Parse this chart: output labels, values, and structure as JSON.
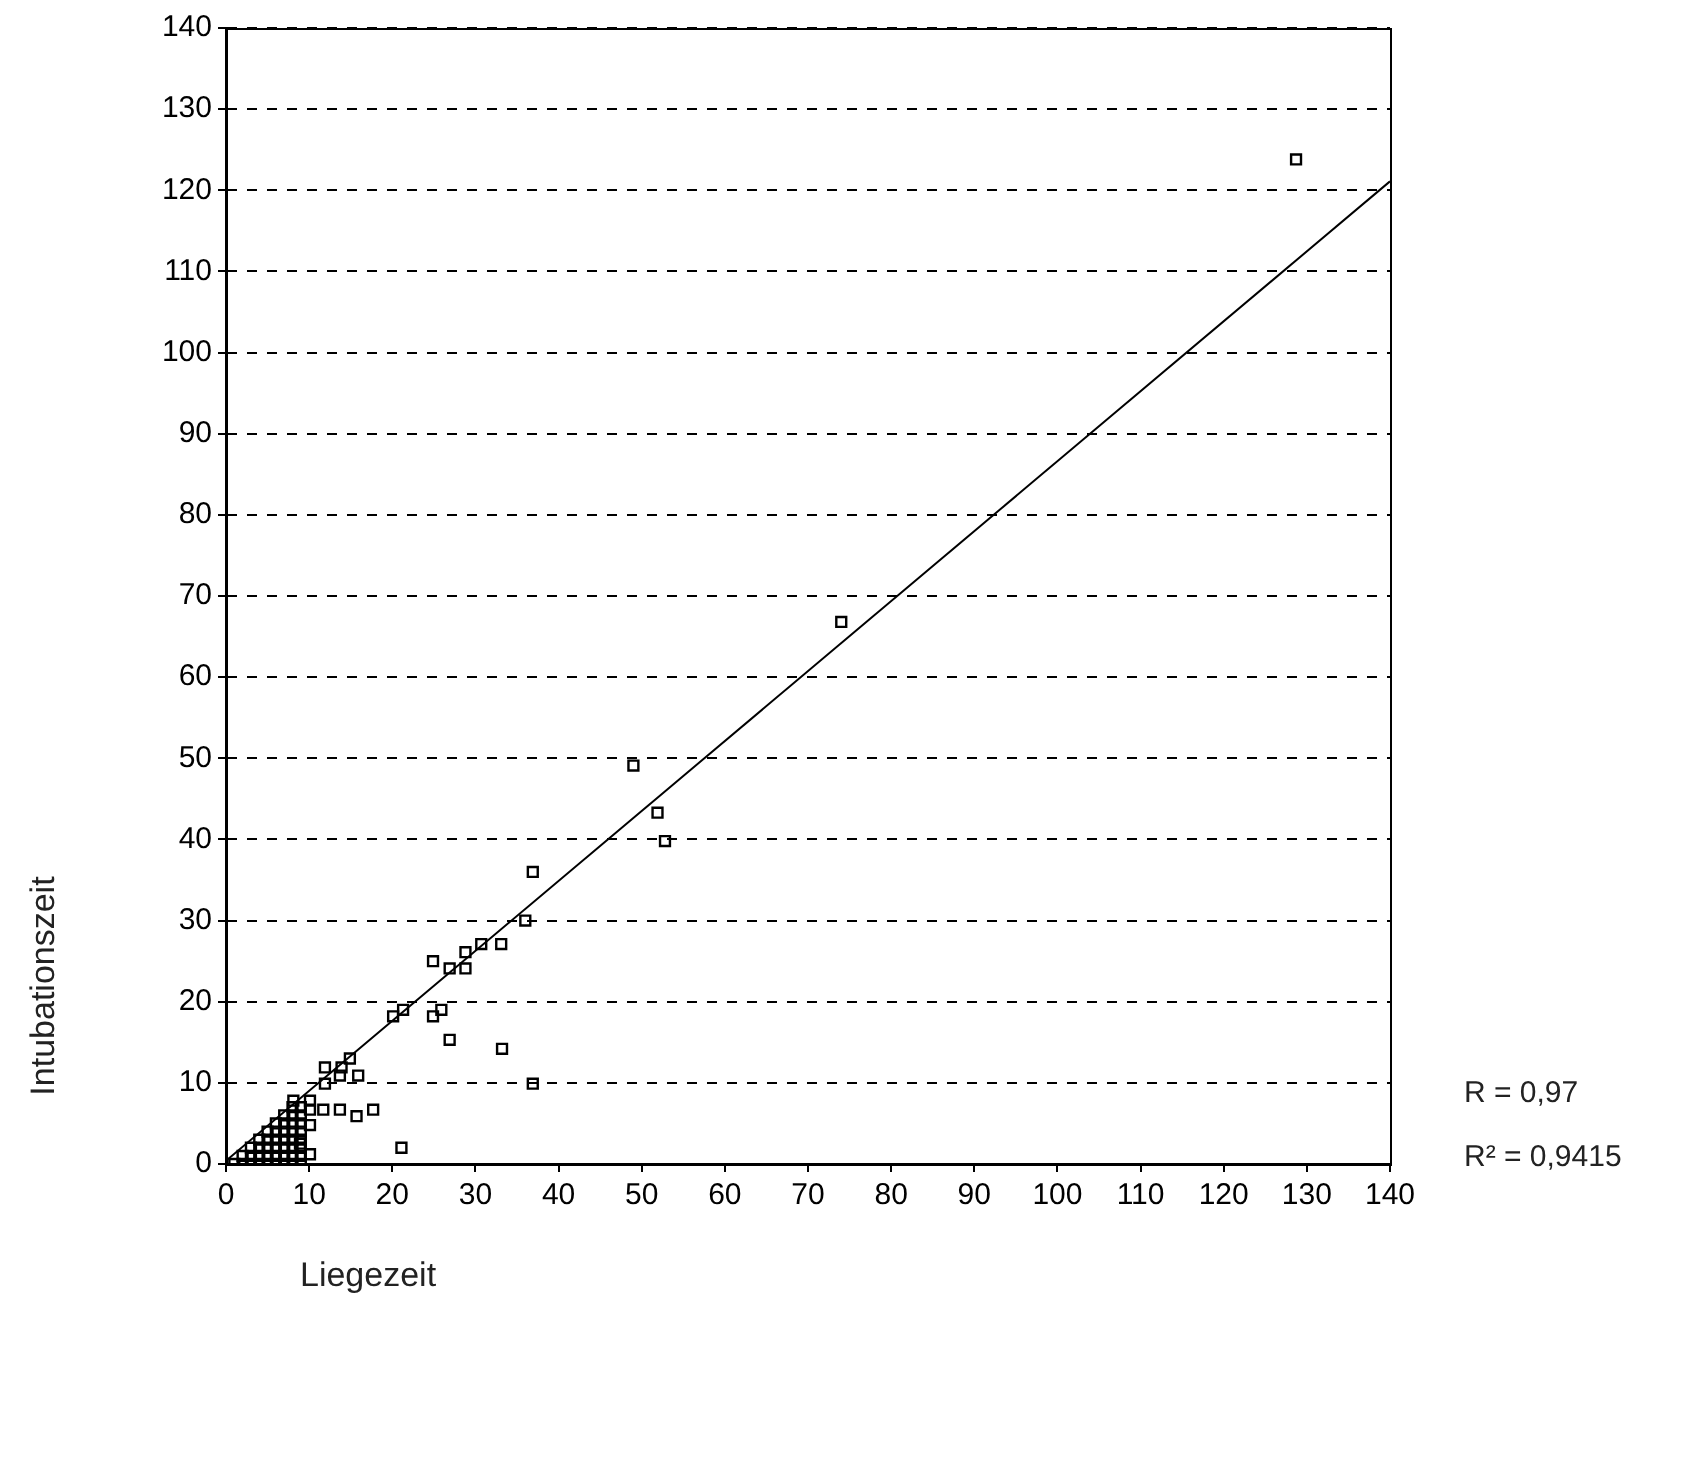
{
  "chart_data": {
    "type": "scatter",
    "xlabel": "Liegezeit",
    "ylabel": "Intubationszeit",
    "annotations": [
      "R = 0,97",
      "R² = 0,9415"
    ],
    "xlim": [
      0,
      140
    ],
    "xticks": [
      0,
      10,
      20,
      30,
      40,
      50,
      60,
      70,
      80,
      90,
      100,
      110,
      120,
      130,
      140
    ],
    "ylim": [
      0,
      140
    ],
    "yticks": [
      0,
      10,
      20,
      30,
      40,
      50,
      60,
      70,
      80,
      90,
      100,
      110,
      120,
      130,
      140
    ],
    "grid": "y",
    "legend": false,
    "marker": "square",
    "series": [
      {
        "type": "scatter",
        "color": "#000000",
        "x": [
          128.7,
          74.0,
          49.0,
          51.9,
          52.8,
          36.9,
          36.0,
          33.1,
          30.7,
          28.8,
          24.9,
          28.8,
          26.9,
          21.3,
          20.1,
          25.9,
          24.9,
          26.9,
          33.2,
          36.9,
          21.1,
          14.9,
          15.9,
          13.7,
          11.9,
          13.9,
          11.9,
          10.1,
          8.1,
          10.1,
          11.7,
          13.7,
          15.7,
          17.7,
          10.1,
          10.1,
          8.9,
          1,
          2,
          2,
          3,
          3,
          3,
          4,
          4,
          4,
          4,
          5,
          5,
          5,
          5,
          5,
          6,
          6,
          6,
          6,
          6,
          6,
          7,
          7,
          7,
          7,
          7,
          7,
          7,
          8,
          8,
          8,
          8,
          8,
          8,
          8,
          8,
          9,
          9,
          9,
          9,
          9,
          9,
          9,
          9
        ],
        "values": [
          123.8,
          66.8,
          49.1,
          43.3,
          39.8,
          36.0,
          30.0,
          27.1,
          27.1,
          26.1,
          25.0,
          24.1,
          24.1,
          19.0,
          18.2,
          19.0,
          18.2,
          15.3,
          14.2,
          9.9,
          2.0,
          13.0,
          10.9,
          10.9,
          11.9,
          11.9,
          9.9,
          7.8,
          7.8,
          6.7,
          6.7,
          6.7,
          5.9,
          6.7,
          4.8,
          1.2,
          2.5,
          0,
          0,
          1,
          0,
          1,
          2,
          0,
          1,
          2,
          3,
          0,
          1,
          2,
          3,
          4,
          0,
          1,
          2,
          3,
          4,
          5,
          0,
          1,
          2,
          3,
          4,
          5,
          6,
          0,
          1,
          2,
          3,
          4,
          5,
          6,
          7,
          0,
          1,
          2,
          3,
          4,
          5,
          6,
          7
        ]
      },
      {
        "type": "line",
        "color": "#000000",
        "marker": "none",
        "line_style": "solid",
        "x": [
          0,
          140
        ],
        "values": [
          0.4,
          121.1
        ]
      }
    ]
  }
}
